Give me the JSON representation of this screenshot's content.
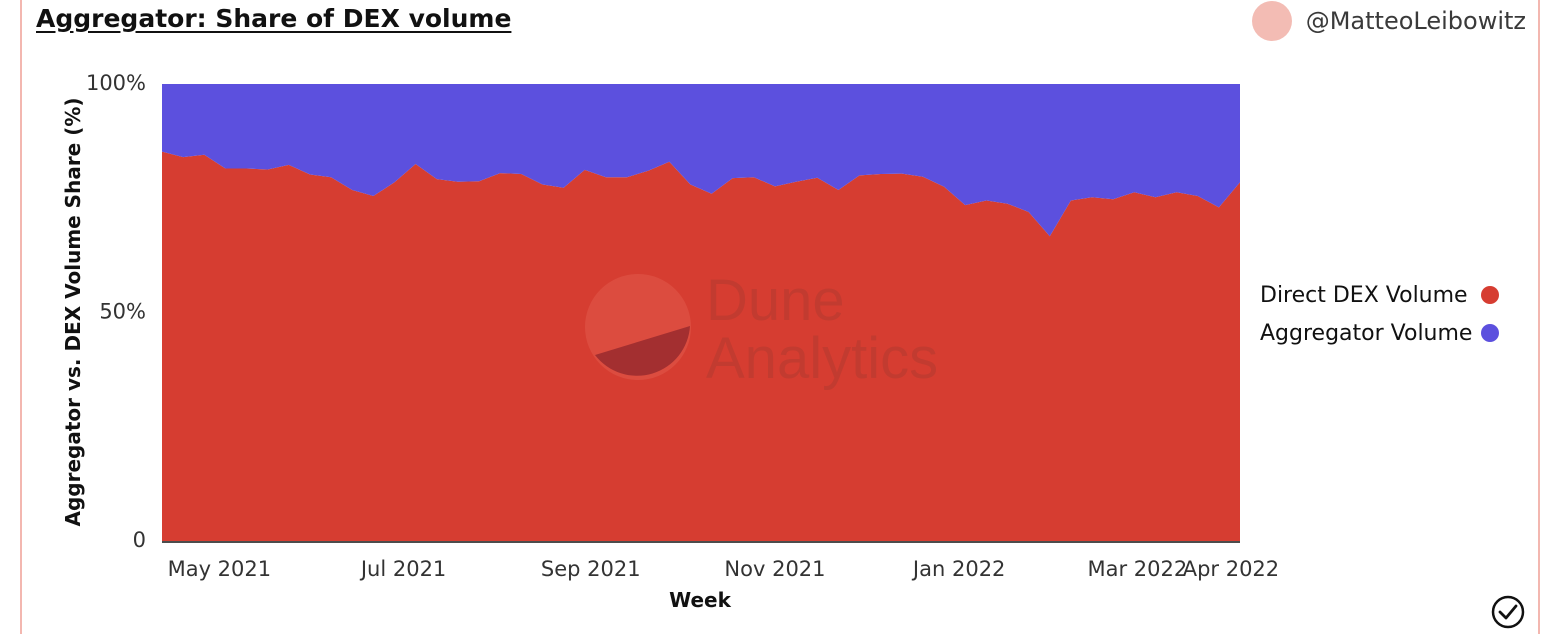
{
  "header": {
    "title": "Aggregator: Share of DEX volume",
    "author": "@MatteoLeibowitz"
  },
  "watermark": {
    "line1": "Dune",
    "line2": "Analytics"
  },
  "chart_data": {
    "type": "area",
    "stacked": true,
    "normalized": true,
    "xlabel": "Week",
    "ylabel": "Aggregator vs. DEX Volume Share (%)",
    "ylim": [
      0,
      100
    ],
    "y_ticks": [
      {
        "value": 0,
        "label": "0"
      },
      {
        "value": 50,
        "label": "50%"
      },
      {
        "value": 100,
        "label": "100%"
      }
    ],
    "x_range": [
      "2021-04-12",
      "2022-04-04"
    ],
    "x_ticks": [
      {
        "date": "2021-05-01",
        "label": "May 2021"
      },
      {
        "date": "2021-07-01",
        "label": "Jul 2021"
      },
      {
        "date": "2021-09-01",
        "label": "Sep 2021"
      },
      {
        "date": "2021-11-01",
        "label": "Nov 2021"
      },
      {
        "date": "2022-01-01",
        "label": "Jan 2022"
      },
      {
        "date": "2022-03-01",
        "label": "Mar 2022"
      },
      {
        "date": "2022-04-01",
        "label": "Apr 2022"
      }
    ],
    "x": [
      "2021-04-12",
      "2021-04-19",
      "2021-04-26",
      "2021-05-03",
      "2021-05-10",
      "2021-05-17",
      "2021-05-24",
      "2021-05-31",
      "2021-06-07",
      "2021-06-14",
      "2021-06-21",
      "2021-06-28",
      "2021-07-05",
      "2021-07-12",
      "2021-07-19",
      "2021-07-26",
      "2021-08-02",
      "2021-08-09",
      "2021-08-16",
      "2021-08-23",
      "2021-08-30",
      "2021-09-06",
      "2021-09-13",
      "2021-09-20",
      "2021-09-27",
      "2021-10-04",
      "2021-10-11",
      "2021-10-18",
      "2021-10-25",
      "2021-11-01",
      "2021-11-08",
      "2021-11-15",
      "2021-11-22",
      "2021-11-29",
      "2021-12-06",
      "2021-12-13",
      "2021-12-20",
      "2021-12-27",
      "2022-01-03",
      "2022-01-10",
      "2022-01-17",
      "2022-01-24",
      "2022-01-31",
      "2022-02-07",
      "2022-02-14",
      "2022-02-21",
      "2022-02-28",
      "2022-03-07",
      "2022-03-14",
      "2022-03-21",
      "2022-03-28",
      "2022-04-04"
    ],
    "series": [
      {
        "name": "Direct DEX Volume",
        "color": "#d63d31",
        "values": [
          85.2,
          84.0,
          84.5,
          81.5,
          81.5,
          81.3,
          82.3,
          80.2,
          79.6,
          76.8,
          75.5,
          78.5,
          82.5,
          79.2,
          78.6,
          78.7,
          80.5,
          80.3,
          78.0,
          77.3,
          81.2,
          79.6,
          79.6,
          81.0,
          83.0,
          78.0,
          76.0,
          79.4,
          79.6,
          77.6,
          78.6,
          79.5,
          76.8,
          80.0,
          80.3,
          80.4,
          79.7,
          77.5,
          73.5,
          74.5,
          73.8,
          72.0,
          66.7,
          74.5,
          75.2,
          74.8,
          76.3,
          75.2,
          76.3,
          75.5,
          73.0,
          78.5
        ]
      },
      {
        "name": "Aggregator Volume",
        "color": "#5c50de",
        "values": [
          14.8,
          16.0,
          15.5,
          18.5,
          18.5,
          18.7,
          17.7,
          19.8,
          20.4,
          23.2,
          24.5,
          21.5,
          17.5,
          20.8,
          21.4,
          21.3,
          19.5,
          19.7,
          22.0,
          22.7,
          18.8,
          20.4,
          20.4,
          19.0,
          17.0,
          22.0,
          24.0,
          20.6,
          20.4,
          22.4,
          21.4,
          20.5,
          23.2,
          20.0,
          19.7,
          19.6,
          20.3,
          22.5,
          26.5,
          25.5,
          26.2,
          28.0,
          33.3,
          25.5,
          24.8,
          25.2,
          23.7,
          24.8,
          23.7,
          24.5,
          27.0,
          21.5
        ]
      }
    ],
    "legend_position": "right"
  }
}
